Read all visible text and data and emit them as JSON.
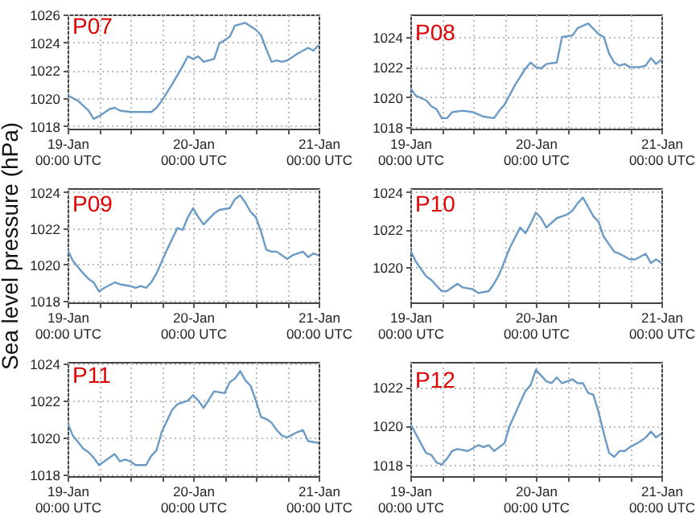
{
  "chart_data": [
    {
      "type": "line",
      "title": "P07",
      "color": "#6a9ac6",
      "xlim": [
        "--01-19T00:00",
        "--01-21T00:00"
      ],
      "xticks": [
        {
          "value": "--01-19T00:00",
          "label": "19-Jan\n00:00 UTC"
        },
        {
          "value": "--01-19T06:00",
          "label": null
        },
        {
          "value": "--01-19T12:00",
          "label": null
        },
        {
          "value": "--01-19T18:00",
          "label": null
        },
        {
          "value": "--01-20T00:00",
          "label": "20-Jan\n00:00 UTC"
        },
        {
          "value": "--01-20T06:00",
          "label": null
        },
        {
          "value": "--01-20T12:00",
          "label": null
        },
        {
          "value": "--01-20T18:00",
          "label": null
        },
        {
          "value": "--01-21T00:00",
          "label": "21-Jan\n00:00 UTC"
        }
      ],
      "ylim": [
        1017.8,
        1026
      ],
      "yticks": [
        1018,
        1020,
        1022,
        1024,
        1026
      ],
      "grid": true,
      "x": [
        "--01-19T00:00",
        "--01-19T02:00",
        "--01-19T04:00",
        "--01-19T05:00",
        "--01-19T06:00",
        "--01-19T08:00",
        "--01-19T09:00",
        "--01-19T10:00",
        "--01-19T12:00",
        "--01-19T14:00",
        "--01-19T16:00",
        "--01-19T17:00",
        "--01-19T18:00",
        "--01-19T20:00",
        "--01-19T22:00",
        "--01-19T23:00",
        "--01-20T00:00",
        "--01-20T01:00",
        "--01-20T02:00",
        "--01-20T04:00",
        "--01-20T05:00",
        "--01-20T07:00",
        "--01-20T08:00",
        "--01-20T10:00",
        "--01-20T12:00",
        "--01-20T13:00",
        "--01-20T14:00",
        "--01-20T15:00",
        "--01-20T16:00",
        "--01-20T17:00",
        "--01-20T18:00",
        "--01-20T20:00",
        "--01-20T22:00",
        "--01-20T23:00",
        "--01-21T00:00"
      ],
      "values": [
        1020.2,
        1019.8,
        1019.1,
        1018.5,
        1018.7,
        1019.2,
        1019.3,
        1019.1,
        1019.0,
        1019.0,
        1019.0,
        1019.3,
        1019.8,
        1021.0,
        1022.3,
        1023.0,
        1022.8,
        1023.0,
        1022.6,
        1022.8,
        1023.9,
        1024.4,
        1025.2,
        1025.4,
        1024.9,
        1024.5,
        1023.5,
        1022.6,
        1022.7,
        1022.6,
        1022.7,
        1023.2,
        1023.6,
        1023.4,
        1023.8
      ]
    },
    {
      "type": "line",
      "title": "P08",
      "color": "#6a9ac6",
      "xlim": [
        "--01-19T00:00",
        "--01-21T00:00"
      ],
      "xticks": [
        {
          "value": "--01-19T00:00",
          "label": "19-Jan\n00:00 UTC"
        },
        {
          "value": "--01-19T06:00",
          "label": null
        },
        {
          "value": "--01-19T12:00",
          "label": null
        },
        {
          "value": "--01-19T18:00",
          "label": null
        },
        {
          "value": "--01-20T00:00",
          "label": "20-Jan\n00:00 UTC"
        },
        {
          "value": "--01-20T06:00",
          "label": null
        },
        {
          "value": "--01-20T12:00",
          "label": null
        },
        {
          "value": "--01-20T18:00",
          "label": null
        },
        {
          "value": "--01-21T00:00",
          "label": "21-Jan\n00:00 UTC"
        }
      ],
      "ylim": [
        1017.9,
        1025.5
      ],
      "yticks": [
        1018,
        1020,
        1022,
        1024
      ],
      "grid": true,
      "x": [
        "--01-19T00:00",
        "--01-19T01:00",
        "--01-19T03:00",
        "--01-19T04:00",
        "--01-19T05:00",
        "--01-19T06:00",
        "--01-19T07:00",
        "--01-19T08:00",
        "--01-19T10:00",
        "--01-19T12:00",
        "--01-19T14:00",
        "--01-19T16:00",
        "--01-19T17:00",
        "--01-19T18:00",
        "--01-19T20:00",
        "--01-19T22:00",
        "--01-19T23:00",
        "--01-20T00:00",
        "--01-20T01:00",
        "--01-20T02:00",
        "--01-20T04:00",
        "--01-20T05:00",
        "--01-20T07:00",
        "--01-20T08:00",
        "--01-20T10:00",
        "--01-20T12:00",
        "--01-20T13:00",
        "--01-20T14:00",
        "--01-20T15:00",
        "--01-20T16:00",
        "--01-20T17:00",
        "--01-20T18:00",
        "--01-20T20:00",
        "--01-20T21:00",
        "--01-20T22:00",
        "--01-20T23:00",
        "--01-21T00:00"
      ],
      "values": [
        1020.6,
        1020.1,
        1019.8,
        1019.4,
        1019.2,
        1018.6,
        1018.6,
        1019.0,
        1019.1,
        1019.0,
        1018.7,
        1018.6,
        1019.1,
        1019.5,
        1020.8,
        1021.9,
        1022.3,
        1022.0,
        1021.9,
        1022.2,
        1022.3,
        1024.0,
        1024.1,
        1024.6,
        1024.9,
        1024.2,
        1024.0,
        1022.9,
        1022.3,
        1022.1,
        1022.2,
        1022.0,
        1022.0,
        1022.1,
        1022.6,
        1022.2,
        1022.5
      ]
    },
    {
      "type": "line",
      "title": "P09",
      "ylabel": "Sea level pressure (hPa)",
      "color": "#6a9ac6",
      "xlim": [
        "--01-19T00:00",
        "--01-21T00:00"
      ],
      "xticks": [
        {
          "value": "--01-19T00:00",
          "label": "19-Jan\n00:00 UTC"
        },
        {
          "value": "--01-19T06:00",
          "label": null
        },
        {
          "value": "--01-19T12:00",
          "label": null
        },
        {
          "value": "--01-19T18:00",
          "label": null
        },
        {
          "value": "--01-20T00:00",
          "label": "20-Jan\n00:00 UTC"
        },
        {
          "value": "--01-20T06:00",
          "label": null
        },
        {
          "value": "--01-20T12:00",
          "label": null
        },
        {
          "value": "--01-20T18:00",
          "label": null
        },
        {
          "value": "--01-21T00:00",
          "label": "21-Jan\n00:00 UTC"
        }
      ],
      "ylim": [
        1017.9,
        1024.2
      ],
      "yticks": [
        1018,
        1020,
        1022,
        1024
      ],
      "grid": true,
      "x": [
        "--01-19T00:00",
        "--01-19T01:00",
        "--01-19T03:00",
        "--01-19T04:00",
        "--01-19T05:00",
        "--01-19T06:00",
        "--01-19T07:00",
        "--01-19T09:00",
        "--01-19T10:00",
        "--01-19T12:00",
        "--01-19T13:00",
        "--01-19T14:00",
        "--01-19T15:00",
        "--01-19T16:00",
        "--01-19T17:00",
        "--01-19T19:00",
        "--01-19T21:00",
        "--01-19T22:00",
        "--01-19T23:00",
        "--01-20T00:00",
        "--01-20T01:00",
        "--01-20T02:00",
        "--01-20T04:00",
        "--01-20T05:00",
        "--01-20T07:00",
        "--01-20T08:00",
        "--01-20T09:00",
        "--01-20T10:00",
        "--01-20T11:00",
        "--01-20T12:00",
        "--01-20T13:00",
        "--01-20T14:00",
        "--01-20T15:00",
        "--01-20T16:00",
        "--01-20T18:00",
        "--01-20T19:00",
        "--01-20T21:00",
        "--01-20T22:00",
        "--01-20T23:00",
        "--01-21T00:00"
      ],
      "values": [
        1020.8,
        1020.2,
        1019.5,
        1019.2,
        1019.0,
        1018.5,
        1018.7,
        1019.0,
        1018.9,
        1018.8,
        1018.7,
        1018.8,
        1018.7,
        1019.0,
        1019.5,
        1020.8,
        1022.0,
        1021.9,
        1022.6,
        1023.1,
        1022.6,
        1022.2,
        1022.8,
        1023.0,
        1023.1,
        1023.6,
        1023.8,
        1023.4,
        1022.9,
        1022.6,
        1021.8,
        1020.8,
        1020.7,
        1020.7,
        1020.3,
        1020.5,
        1020.7,
        1020.4,
        1020.6,
        1020.5
      ]
    },
    {
      "type": "line",
      "title": "P10",
      "color": "#6a9ac6",
      "xlim": [
        "--01-19T00:00",
        "--01-21T00:00"
      ],
      "xticks": [
        {
          "value": "--01-19T00:00",
          "label": "19-Jan\n00:00 UTC"
        },
        {
          "value": "--01-19T06:00",
          "label": null
        },
        {
          "value": "--01-19T12:00",
          "label": null
        },
        {
          "value": "--01-19T18:00",
          "label": null
        },
        {
          "value": "--01-20T00:00",
          "label": "20-Jan\n00:00 UTC"
        },
        {
          "value": "--01-20T06:00",
          "label": null
        },
        {
          "value": "--01-20T12:00",
          "label": null
        },
        {
          "value": "--01-20T18:00",
          "label": null
        },
        {
          "value": "--01-21T00:00",
          "label": "21-Jan\n00:00 UTC"
        }
      ],
      "ylim": [
        1018.1,
        1024.2
      ],
      "yticks": [
        1020,
        1022,
        1024
      ],
      "grid": true,
      "x": [
        "--01-19T00:00",
        "--01-19T01:00",
        "--01-19T03:00",
        "--01-19T04:00",
        "--01-19T06:00",
        "--01-19T07:00",
        "--01-19T09:00",
        "--01-19T10:00",
        "--01-19T12:00",
        "--01-19T13:00",
        "--01-19T15:00",
        "--01-19T16:00",
        "--01-19T17:00",
        "--01-19T19:00",
        "--01-19T21:00",
        "--01-19T22:00",
        "--01-19T23:00",
        "--01-20T00:00",
        "--01-20T01:00",
        "--01-20T02:00",
        "--01-20T04:00",
        "--01-20T06:00",
        "--01-20T07:00",
        "--01-20T08:00",
        "--01-20T09:00",
        "--01-20T10:00",
        "--01-20T11:00",
        "--01-20T12:00",
        "--01-20T13:00",
        "--01-20T14:00",
        "--01-20T15:00",
        "--01-20T16:00",
        "--01-20T18:00",
        "--01-20T19:00",
        "--01-20T21:00",
        "--01-20T22:00",
        "--01-20T23:00",
        "--01-21T00:00"
      ],
      "values": [
        1020.9,
        1020.3,
        1019.5,
        1019.3,
        1018.7,
        1018.7,
        1019.1,
        1018.9,
        1018.8,
        1018.6,
        1018.7,
        1019.1,
        1019.6,
        1021.0,
        1022.1,
        1021.8,
        1022.3,
        1022.9,
        1022.6,
        1022.1,
        1022.6,
        1022.8,
        1023.0,
        1023.4,
        1023.7,
        1023.2,
        1022.7,
        1022.4,
        1021.6,
        1021.2,
        1020.8,
        1020.7,
        1020.4,
        1020.4,
        1020.7,
        1020.2,
        1020.4,
        1020.2
      ]
    },
    {
      "type": "line",
      "title": "P11",
      "color": "#6a9ac6",
      "xlim": [
        "--01-19T00:00",
        "--01-21T00:00"
      ],
      "xticks": [
        {
          "value": "--01-19T00:00",
          "label": "19-Jan\n00:00 UTC"
        },
        {
          "value": "--01-19T06:00",
          "label": null
        },
        {
          "value": "--01-19T12:00",
          "label": null
        },
        {
          "value": "--01-19T18:00",
          "label": null
        },
        {
          "value": "--01-20T00:00",
          "label": "20-Jan\n00:00 UTC"
        },
        {
          "value": "--01-20T06:00",
          "label": null
        },
        {
          "value": "--01-20T12:00",
          "label": null
        },
        {
          "value": "--01-20T18:00",
          "label": null
        },
        {
          "value": "--01-21T00:00",
          "label": "21-Jan\n00:00 UTC"
        }
      ],
      "ylim": [
        1017.9,
        1024.1
      ],
      "yticks": [
        1018,
        1020,
        1022,
        1024
      ],
      "grid": true,
      "x": [
        "--01-19T00:00",
        "--01-19T01:00",
        "--01-19T03:00",
        "--01-19T04:00",
        "--01-19T05:00",
        "--01-19T06:00",
        "--01-19T07:00",
        "--01-19T09:00",
        "--01-19T10:00",
        "--01-19T11:00",
        "--01-19T12:00",
        "--01-19T13:00",
        "--01-19T15:00",
        "--01-19T16:00",
        "--01-19T17:00",
        "--01-19T18:00",
        "--01-19T20:00",
        "--01-19T21:00",
        "--01-19T23:00",
        "--01-20T00:00",
        "--01-20T01:00",
        "--01-20T02:00",
        "--01-20T04:00",
        "--01-20T06:00",
        "--01-20T07:00",
        "--01-20T08:00",
        "--01-20T09:00",
        "--01-20T10:00",
        "--01-20T11:00",
        "--01-20T12:00",
        "--01-20T13:00",
        "--01-20T14:00",
        "--01-20T15:00",
        "--01-20T16:00",
        "--01-20T17:00",
        "--01-20T18:00",
        "--01-20T20:00",
        "--01-20T21:00",
        "--01-20T22:00",
        "--01-21T00:00"
      ],
      "values": [
        1020.8,
        1020.1,
        1019.4,
        1019.2,
        1018.9,
        1018.5,
        1018.7,
        1019.1,
        1018.7,
        1018.8,
        1018.7,
        1018.5,
        1018.5,
        1019.0,
        1019.3,
        1020.3,
        1021.5,
        1021.8,
        1022.0,
        1022.3,
        1022.0,
        1021.6,
        1022.5,
        1022.4,
        1023.0,
        1023.2,
        1023.6,
        1023.1,
        1022.8,
        1022.0,
        1021.1,
        1021.0,
        1020.8,
        1020.4,
        1020.1,
        1020.0,
        1020.3,
        1020.4,
        1019.8,
        1019.7
      ]
    },
    {
      "type": "line",
      "title": "P12",
      "color": "#6a9ac6",
      "xlim": [
        "--01-19T00:00",
        "--01-21T00:00"
      ],
      "xticks": [
        {
          "value": "--01-19T00:00",
          "label": "19-Jan\n00:00 UTC"
        },
        {
          "value": "--01-19T06:00",
          "label": null
        },
        {
          "value": "--01-19T12:00",
          "label": null
        },
        {
          "value": "--01-19T18:00",
          "label": null
        },
        {
          "value": "--01-20T00:00",
          "label": "20-Jan\n00:00 UTC"
        },
        {
          "value": "--01-20T06:00",
          "label": null
        },
        {
          "value": "--01-20T12:00",
          "label": null
        },
        {
          "value": "--01-20T18:00",
          "label": null
        },
        {
          "value": "--01-21T00:00",
          "label": "21-Jan\n00:00 UTC"
        }
      ],
      "ylim": [
        1017.4,
        1023.3
      ],
      "yticks": [
        1018,
        1020,
        1022
      ],
      "grid": true,
      "x": [
        "--01-19T00:00",
        "--01-19T01:00",
        "--01-19T02:00",
        "--01-19T03:00",
        "--01-19T04:00",
        "--01-19T05:00",
        "--01-19T06:00",
        "--01-19T07:00",
        "--01-19T08:00",
        "--01-19T09:00",
        "--01-19T11:00",
        "--01-19T13:00",
        "--01-19T14:00",
        "--01-19T15:00",
        "--01-19T16:00",
        "--01-19T17:00",
        "--01-19T18:00",
        "--01-19T19:00",
        "--01-19T21:00",
        "--01-19T22:00",
        "--01-19T23:00",
        "--01-20T00:00",
        "--01-20T01:00",
        "--01-20T02:00",
        "--01-20T03:00",
        "--01-20T04:00",
        "--01-20T05:00",
        "--01-20T06:00",
        "--01-20T07:00",
        "--01-20T08:00",
        "--01-20T09:00",
        "--01-20T10:00",
        "--01-20T11:00",
        "--01-20T12:00",
        "--01-20T13:00",
        "--01-20T14:00",
        "--01-20T15:00",
        "--01-20T16:00",
        "--01-20T17:00",
        "--01-20T18:00",
        "--01-20T20:00",
        "--01-20T21:00",
        "--01-20T22:00",
        "--01-20T23:00",
        "--01-21T00:00"
      ],
      "values": [
        1020.1,
        1019.6,
        1019.1,
        1018.6,
        1018.5,
        1018.1,
        1018.0,
        1018.3,
        1018.7,
        1018.8,
        1018.7,
        1019.0,
        1018.9,
        1019.0,
        1018.7,
        1018.9,
        1019.1,
        1020.0,
        1021.2,
        1021.8,
        1022.1,
        1022.9,
        1022.6,
        1022.3,
        1022.2,
        1022.5,
        1022.2,
        1022.3,
        1022.4,
        1022.2,
        1022.2,
        1021.7,
        1021.6,
        1020.7,
        1019.6,
        1018.6,
        1018.4,
        1018.7,
        1018.7,
        1018.9,
        1019.2,
        1019.4,
        1019.7,
        1019.4,
        1019.6
      ]
    }
  ]
}
